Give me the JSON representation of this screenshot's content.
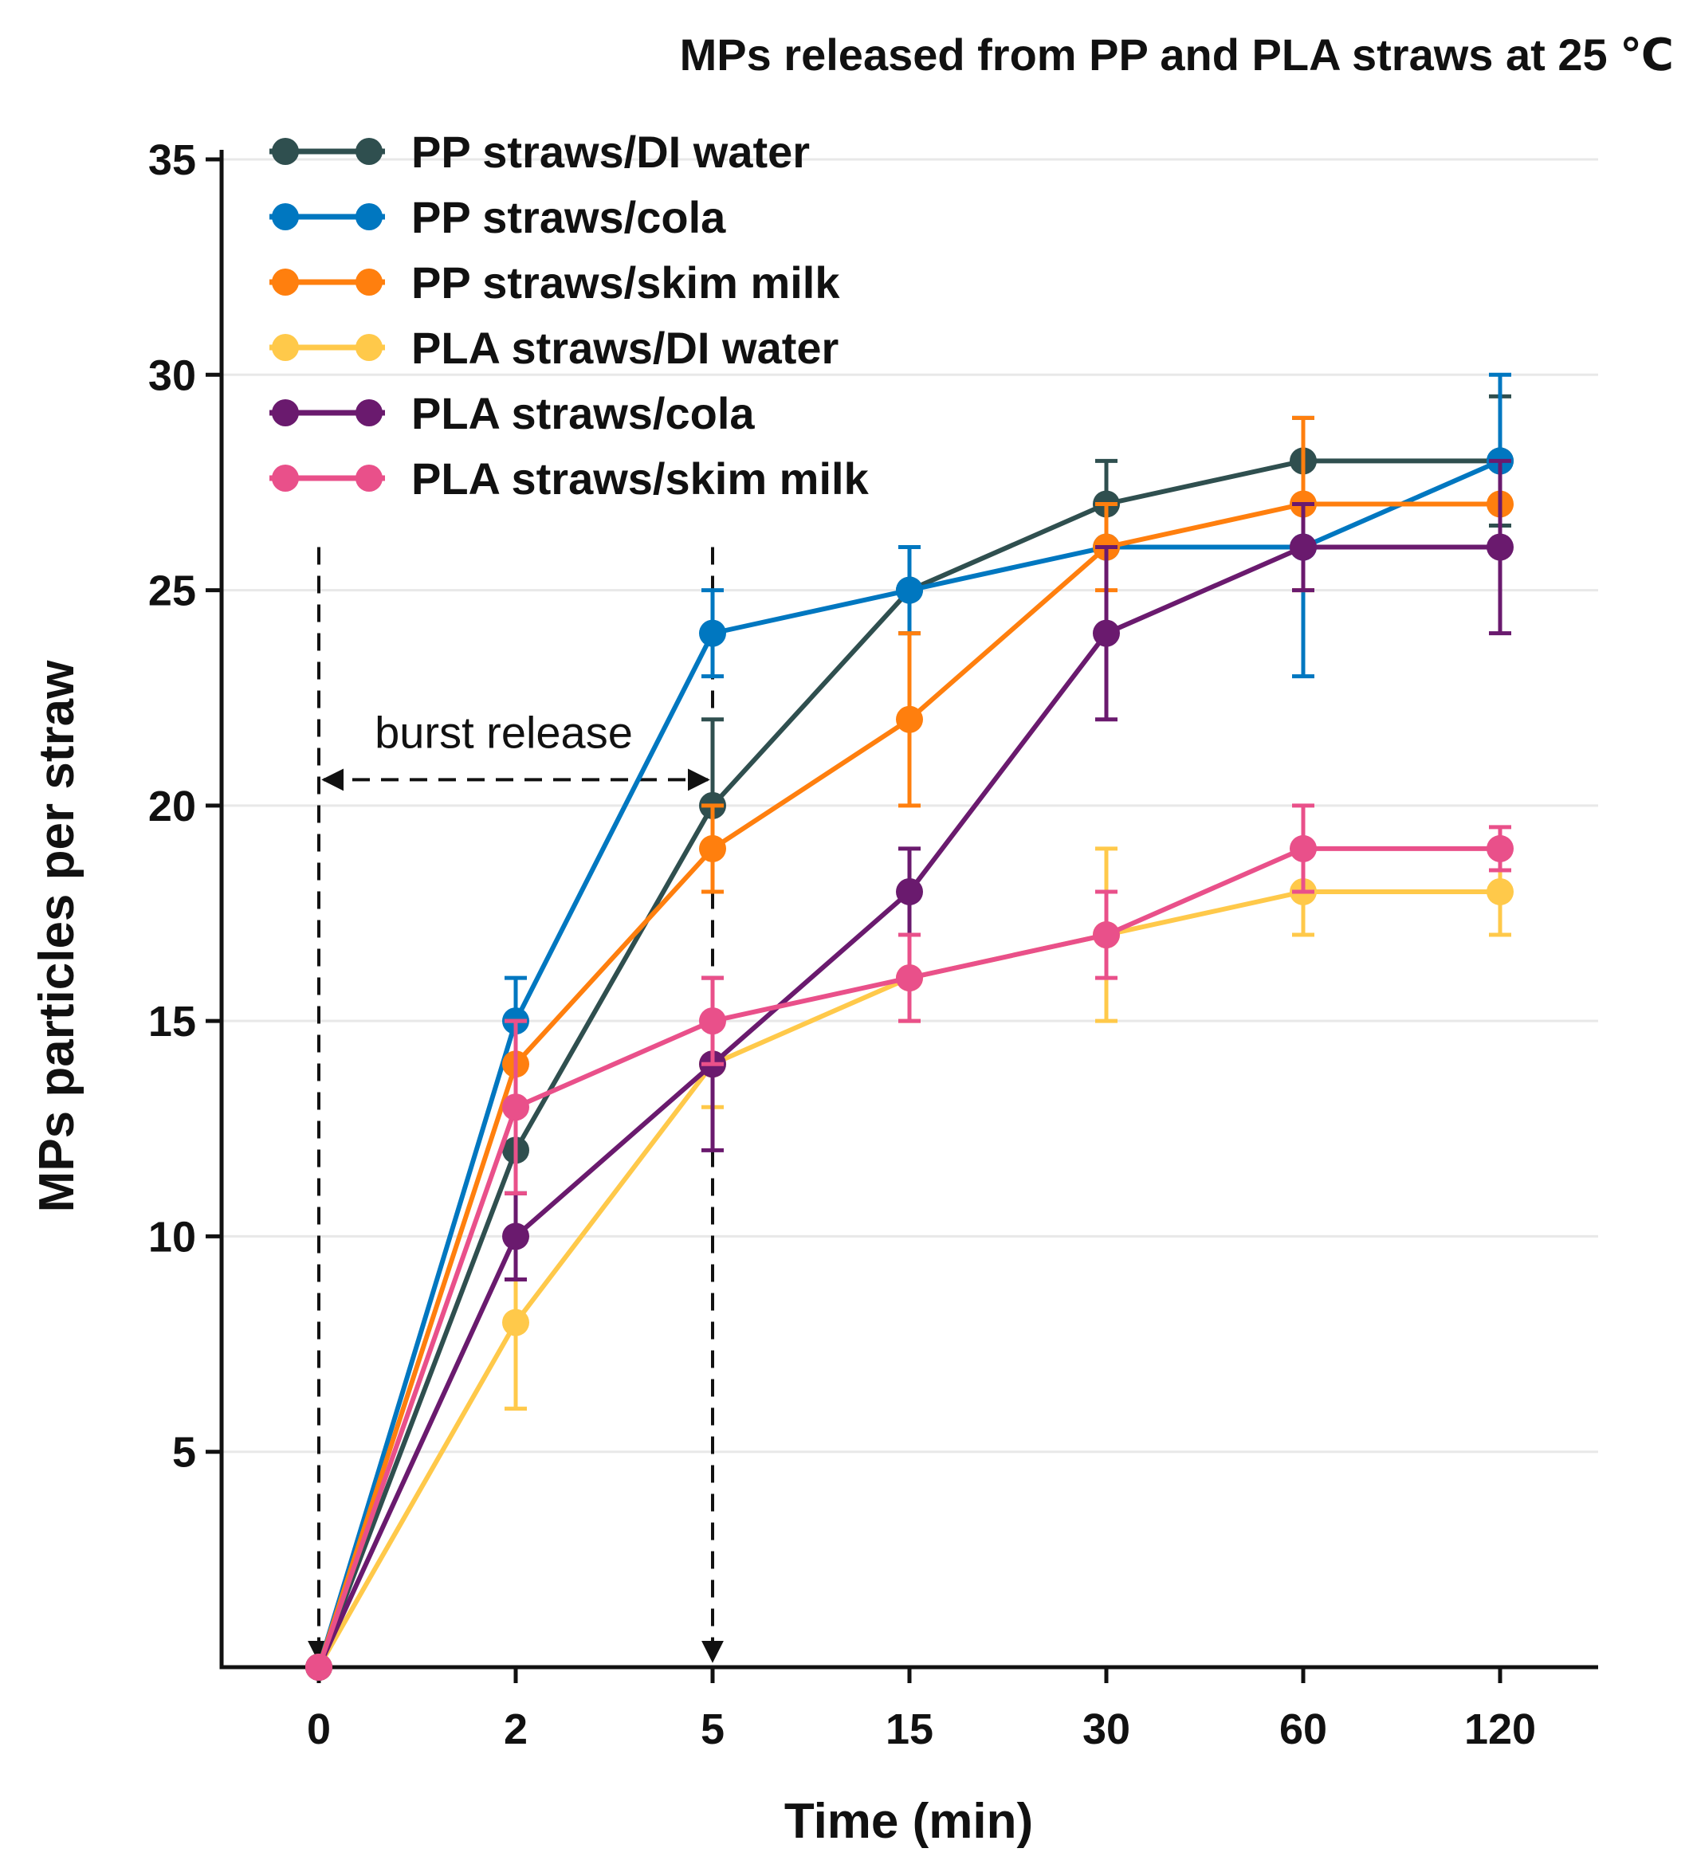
{
  "chart_data": {
    "type": "line",
    "title": "MPs released from PP and PLA straws at 25 ℃",
    "xlabel": "Time (min)",
    "ylabel": "MPs particles per straw",
    "categories": [
      "0",
      "2",
      "5",
      "15",
      "30",
      "60",
      "120"
    ],
    "ylim": [
      0,
      35
    ],
    "yticks": [
      5,
      10,
      15,
      20,
      25,
      30,
      35
    ],
    "grid": "horizontal",
    "legend_position": "top-left",
    "series": [
      {
        "name": "PP straws/DI water",
        "color": "#2f4f4f",
        "values": [
          0,
          12,
          20,
          25,
          27,
          28,
          28
        ],
        "errors": [
          0,
          1,
          2,
          1,
          1,
          0,
          1.5
        ]
      },
      {
        "name": "PP straws/cola",
        "color": "#0077c0",
        "values": [
          0,
          15,
          24,
          25,
          26,
          26,
          28
        ],
        "errors": [
          0,
          1,
          1,
          1,
          0,
          3,
          2
        ]
      },
      {
        "name": "PP straws/skim milk",
        "color": "#ff7f0e",
        "values": [
          0,
          14,
          19,
          22,
          26,
          27,
          27
        ],
        "errors": [
          0,
          1,
          1,
          2,
          1,
          2,
          0
        ]
      },
      {
        "name": "PLA straws/DI water",
        "color": "#ffc94a",
        "values": [
          0,
          8,
          14,
          16,
          17,
          18,
          18
        ],
        "errors": [
          0,
          2,
          1,
          1,
          2,
          1,
          1
        ]
      },
      {
        "name": "PLA straws/cola",
        "color": "#6a1a6e",
        "values": [
          0,
          10,
          14,
          18,
          24,
          26,
          26
        ],
        "errors": [
          0,
          1,
          2,
          1,
          2,
          1,
          2
        ]
      },
      {
        "name": "PLA straws/skim milk",
        "color": "#e9508a",
        "values": [
          0,
          13,
          15,
          16,
          17,
          19,
          19
        ],
        "errors": [
          0,
          2,
          1,
          1,
          1,
          1,
          0.5
        ]
      }
    ],
    "annotations": [
      {
        "text": "burst release",
        "from_category": "0",
        "to_category": "5",
        "y": 20.6
      }
    ],
    "guide_lines": [
      {
        "category": "0",
        "from_y": 26,
        "to_y": 0
      },
      {
        "category": "5",
        "from_y": 26,
        "to_y": 0
      }
    ]
  }
}
